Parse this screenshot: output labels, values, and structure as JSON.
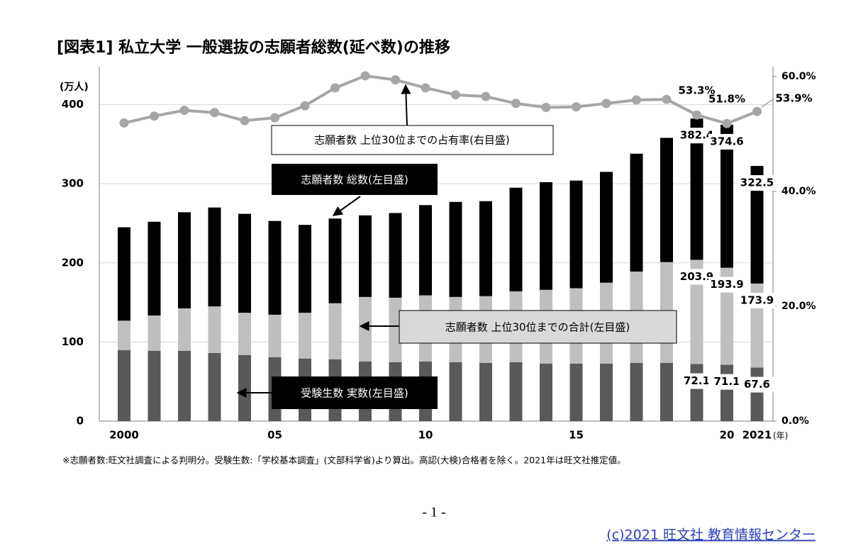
{
  "chart_data": {
    "type": "bar",
    "title": "[図表1] 私立大学 一般選抜の志願者総数(延べ数)の推移",
    "y_label": "(万人)",
    "x_unit": "(年)",
    "categories": [
      "2000",
      null,
      null,
      null,
      null,
      "05",
      null,
      null,
      null,
      null,
      "10",
      null,
      null,
      null,
      null,
      "15",
      null,
      null,
      null,
      null,
      "20",
      "2021"
    ],
    "series": [
      {
        "name": "志願者数 総数(左目盛)",
        "color": "#000000",
        "values": [
          245,
          252,
          264,
          270,
          262,
          253,
          248,
          256,
          260,
          263,
          273,
          277,
          278,
          295,
          302,
          304,
          315,
          338,
          358,
          382.4,
          374.6,
          322.5
        ],
        "value_labels": [
          null,
          null,
          null,
          null,
          null,
          null,
          null,
          null,
          null,
          null,
          null,
          null,
          null,
          null,
          null,
          null,
          null,
          null,
          null,
          "382.4",
          "374.6",
          "322.5"
        ]
      },
      {
        "name": "志願者数 上位30位までの合計(左目盛)",
        "color": "#bfbfbf",
        "values": [
          127,
          133.5,
          142.5,
          145,
          137,
          134.5,
          137,
          149,
          157,
          156,
          159,
          157,
          158,
          164,
          166,
          168,
          175,
          189,
          201,
          203.9,
          193.9,
          173.9
        ],
        "value_labels": [
          null,
          null,
          null,
          null,
          null,
          null,
          null,
          null,
          null,
          null,
          null,
          null,
          null,
          null,
          null,
          null,
          null,
          null,
          null,
          "203.9",
          "193.9",
          "173.9"
        ]
      },
      {
        "name": "受験生数 実数(左目盛)",
        "color": "#595959",
        "values": [
          89.7,
          88.8,
          88.8,
          86,
          83.4,
          80.7,
          79,
          78,
          75.3,
          74.4,
          75.3,
          74.4,
          73.5,
          74.4,
          72.6,
          72.6,
          72.6,
          73.5,
          73.5,
          72.1,
          71.1,
          67.6
        ],
        "value_labels": [
          null,
          null,
          null,
          null,
          null,
          null,
          null,
          null,
          null,
          null,
          null,
          null,
          null,
          null,
          null,
          null,
          null,
          null,
          null,
          "72.1",
          "71.1",
          "67.6"
        ]
      },
      {
        "name": "志願者数 上位30位までの占有率(右目盛)",
        "type": "line",
        "axis": "y2",
        "color": "#a6a6a6",
        "values": [
          51.9,
          53.1,
          54.1,
          53.7,
          52.3,
          52.8,
          54.9,
          58.0,
          60.1,
          59.4,
          58.0,
          56.8,
          56.5,
          55.3,
          54.6,
          54.7,
          55.3,
          55.9,
          56.0,
          53.3,
          51.8,
          53.9
        ],
        "value_labels": [
          null,
          null,
          null,
          null,
          null,
          null,
          null,
          null,
          null,
          null,
          null,
          null,
          null,
          null,
          null,
          null,
          null,
          null,
          null,
          "53.3%",
          "51.8%",
          "53.9%"
        ]
      }
    ],
    "ylim": [
      0,
      448
    ],
    "yticks": [
      0,
      100,
      200,
      300,
      400
    ],
    "y2lim": [
      0,
      61.7
    ],
    "y2ticks": [
      {
        "value": 0,
        "label": "0.0%"
      },
      {
        "value": 20,
        "label": "20.0%"
      },
      {
        "value": 40,
        "label": "40.0%"
      },
      {
        "value": 60,
        "label": "60.0%"
      }
    ],
    "grid": true,
    "footnote": "※志願者数:旺文社調査による判明分。受験生数:「学校基本調査」(文部科学省)より算出。高認(大検)合格者を除く。2021年は旺文社推定値。"
  },
  "page": {
    "number": "- 1 -",
    "credit": "(c)2021 旺文社 教育情報センター"
  }
}
